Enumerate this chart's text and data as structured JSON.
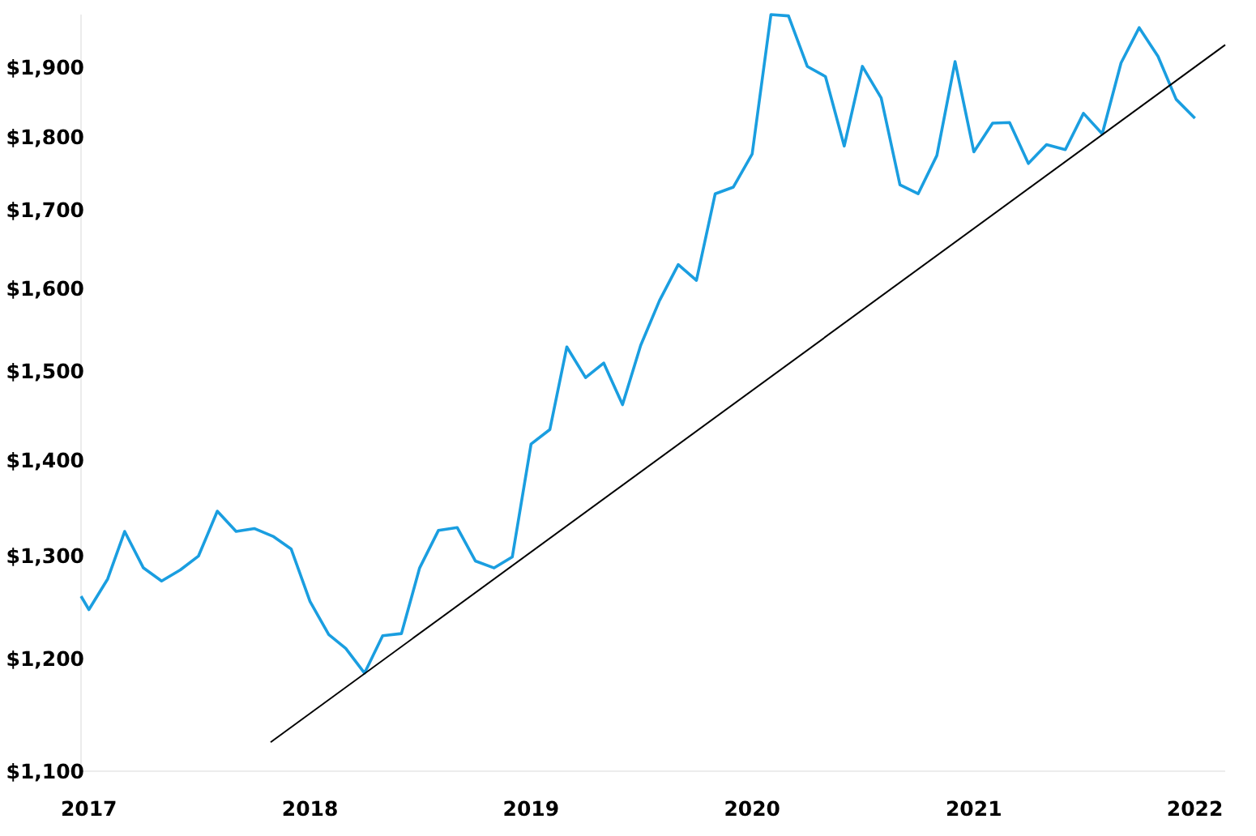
{
  "chart_data": {
    "type": "line",
    "log": true,
    "marker": "none",
    "line_style": "solid",
    "x": [
      "2016-12-19",
      "2017-01",
      "2017-02",
      "2017-03",
      "2017-04",
      "2017-05",
      "2017-06",
      "2017-07",
      "2017-08",
      "2017-09",
      "2017-10",
      "2017-11",
      "2017-12",
      "2018-01",
      "2018-02",
      "2018-03",
      "2018-04",
      "2018-05",
      "2018-06",
      "2018-07",
      "2018-08",
      "2018-09",
      "2018-10",
      "2018-11",
      "2018-12",
      "2019-01",
      "2019-02",
      "2019-03",
      "2019-04",
      "2019-05",
      "2019-06",
      "2019-07",
      "2019-08",
      "2019-09",
      "2019-10",
      "2019-11",
      "2019-12",
      "2020-01",
      "2020-02",
      "2020-03",
      "2020-04",
      "2020-05",
      "2020-06",
      "2020-07",
      "2020-08",
      "2020-09",
      "2020-10",
      "2020-11",
      "2020-12",
      "2021-01",
      "2021-02",
      "2021-03",
      "2021-04",
      "2021-05",
      "2021-06",
      "2021-07",
      "2021-08",
      "2021-09",
      "2021-10",
      "2021-11",
      "2021-12",
      "2022-01"
    ],
    "series": [
      {
        "color": "#1a9ee0",
        "values": [
          1260,
          1247,
          1277,
          1325,
          1288,
          1275,
          1286,
          1300,
          1346,
          1325,
          1328,
          1320,
          1307,
          1255,
          1223,
          1210,
          1187,
          1222,
          1224,
          1288,
          1326,
          1329,
          1295,
          1288,
          1299,
          1418,
          1434,
          1529,
          1493,
          1510,
          1462,
          1531,
          1585,
          1630,
          1610,
          1722,
          1731,
          1776,
          1979,
          1977,
          1901,
          1886,
          1787,
          1901,
          1855,
          1734,
          1722,
          1774,
          1908,
          1779,
          1819,
          1820,
          1763,
          1789,
          1782,
          1833,
          1804,
          1906,
          1959,
          1916,
          1853,
          1826
        ]
      },
      {
        "type": "line",
        "color": "#000000",
        "x": [
          "2017-10-28",
          "2022-02-20"
        ],
        "values": [
          1125,
          1933
        ]
      }
    ],
    "xlim": [
      "2016-12-19",
      "2022-02-20"
    ],
    "ylim": [
      1100,
      1979
    ],
    "xticks": [
      "2017",
      "2018",
      "2019",
      "2020",
      "2021",
      "2022"
    ],
    "yticks": [
      {
        "value": 1100,
        "label": "$1,100"
      },
      {
        "value": 1200,
        "label": "$1,200"
      },
      {
        "value": 1300,
        "label": "$1,300"
      },
      {
        "value": 1400,
        "label": "$1,400"
      },
      {
        "value": 1500,
        "label": "$1,500"
      },
      {
        "value": 1600,
        "label": "$1,600"
      },
      {
        "value": 1700,
        "label": "$1,700"
      },
      {
        "value": 1800,
        "label": "$1,800"
      },
      {
        "value": 1900,
        "label": "$1,900"
      }
    ]
  }
}
